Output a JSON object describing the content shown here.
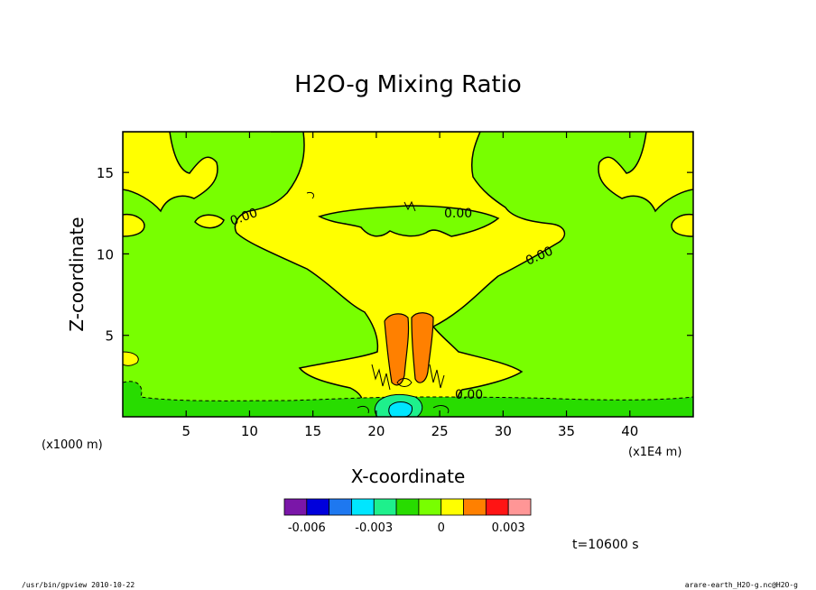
{
  "chart_data": {
    "type": "heatmap",
    "title": "H2O-g Mixing Ratio",
    "xlabel": "X-coordinate",
    "ylabel": "Z-coordinate",
    "x_unit_left": "(x1000 m)",
    "x_unit_right": "(x1E4 m)",
    "x_ticks": [
      5,
      10,
      15,
      20,
      25,
      30,
      35,
      40
    ],
    "y_ticks": [
      5,
      10,
      15
    ],
    "xlim": [
      0,
      45
    ],
    "ylim": [
      0,
      17.5
    ],
    "contour_labels": [
      "0.00",
      "0.00",
      "0.00",
      "0.00"
    ],
    "colorbar": {
      "colors": [
        "#7a16a8",
        "#0000dc",
        "#1e78f0",
        "#00e6ff",
        "#1ef08c",
        "#28dc00",
        "#78ff00",
        "#ffff00",
        "#ff8000",
        "#ff1414",
        "#ff9696"
      ],
      "tick_labels": [
        "-0.006",
        "-0.003",
        "0",
        "0.003"
      ],
      "tick_values": [
        -0.006,
        -0.003,
        0,
        0.003
      ]
    },
    "time_label": "t=10600 s",
    "footer_left": "/usr/bin/gpview  2010-10-22",
    "footer_right": "arare-earth_H2O-g.nc@H2O-g"
  }
}
